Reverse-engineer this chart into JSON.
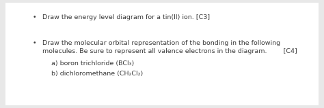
{
  "background_color": "#e8e8e8",
  "box_color": "#ffffff",
  "text_color": "#3a3a3a",
  "bullet1": "Draw the energy level diagram for a tin(II) ion. [C3]",
  "bullet2_line1": "Draw the molecular orbital representation of the bonding in the following",
  "bullet2_line2": "molecules. Be sure to represent all valence electrons in the diagram.        [C4]",
  "sub_a": "a) boron trichloride (BCl₃)",
  "sub_b": "b) dichloromethane (CH₂Cl₂)",
  "font_size": 6.8,
  "bullet_char": "•"
}
